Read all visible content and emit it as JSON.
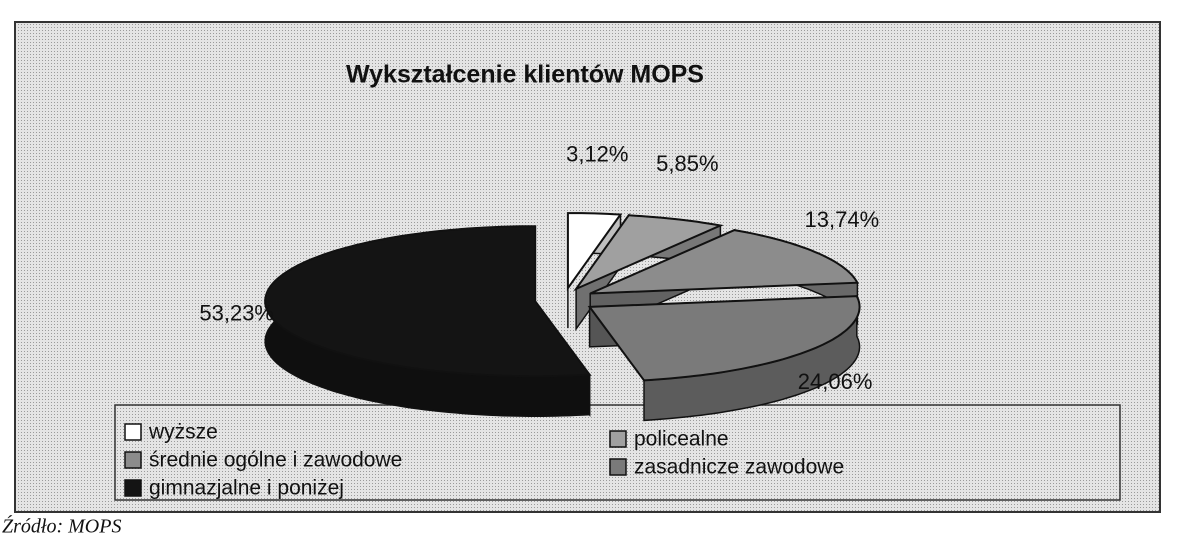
{
  "chart_data": {
    "type": "pie",
    "title": "Wykształcenie klientów MOPS",
    "categories": [
      "wyższe",
      "policealne",
      "średnie ogólne i zawodowe",
      "zasadnicze zawodowe",
      "gimnazjalne i poniżej"
    ],
    "values": [
      3.12,
      5.85,
      13.74,
      24.06,
      53.23
    ],
    "value_labels": [
      "3,12%",
      "5,85%",
      "13,74%",
      "24,06%",
      "53,23%"
    ],
    "colors": [
      "#ffffff",
      "#a0a0a0",
      "#8c8c8c",
      "#7a7a7a",
      "#141414"
    ],
    "note": "Źródło: MOPS"
  }
}
